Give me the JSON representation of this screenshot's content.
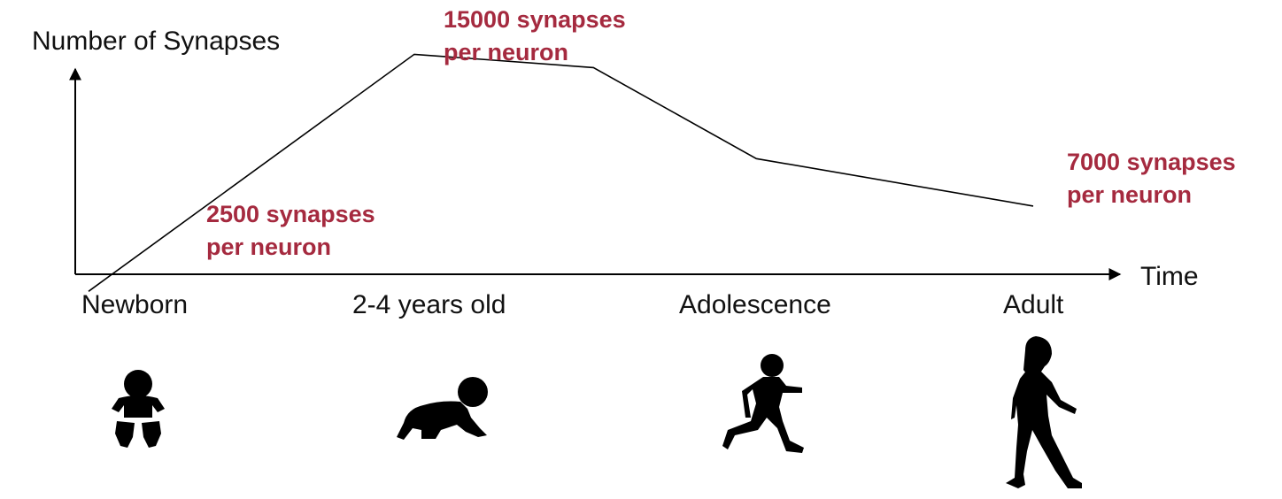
{
  "chart_data": {
    "type": "line",
    "title": "",
    "ylabel": "Number of Synapses",
    "xlabel": "Time",
    "categories": [
      "Newborn",
      "2-4 years old",
      "Adolescence",
      "Adult"
    ],
    "series": [
      {
        "values": [
          [
            0.0,
            2500
          ],
          [
            1.0,
            15000
          ],
          [
            1.55,
            14300
          ],
          [
            2.05,
            9500
          ],
          [
            2.9,
            7000
          ]
        ]
      }
    ],
    "ylim": [
      2000,
      16000
    ],
    "grid": false,
    "annotations": [
      {
        "lines": [
          "2500 synapses",
          "per neuron"
        ],
        "x": 0.0,
        "y": 2500
      },
      {
        "lines": [
          "15000 synapses",
          "per neuron"
        ],
        "x": 1.0,
        "y": 15000
      },
      {
        "lines": [
          "7000 synapses",
          "per neuron"
        ],
        "x": 2.9,
        "y": 7000
      }
    ],
    "annotation_color": "#A52A3F",
    "line_color": "#000000",
    "icons": [
      "baby-silhouette-icon",
      "crawling-toddler-silhouette-icon",
      "running-child-silhouette-icon",
      "walking-woman-silhouette-icon"
    ]
  }
}
